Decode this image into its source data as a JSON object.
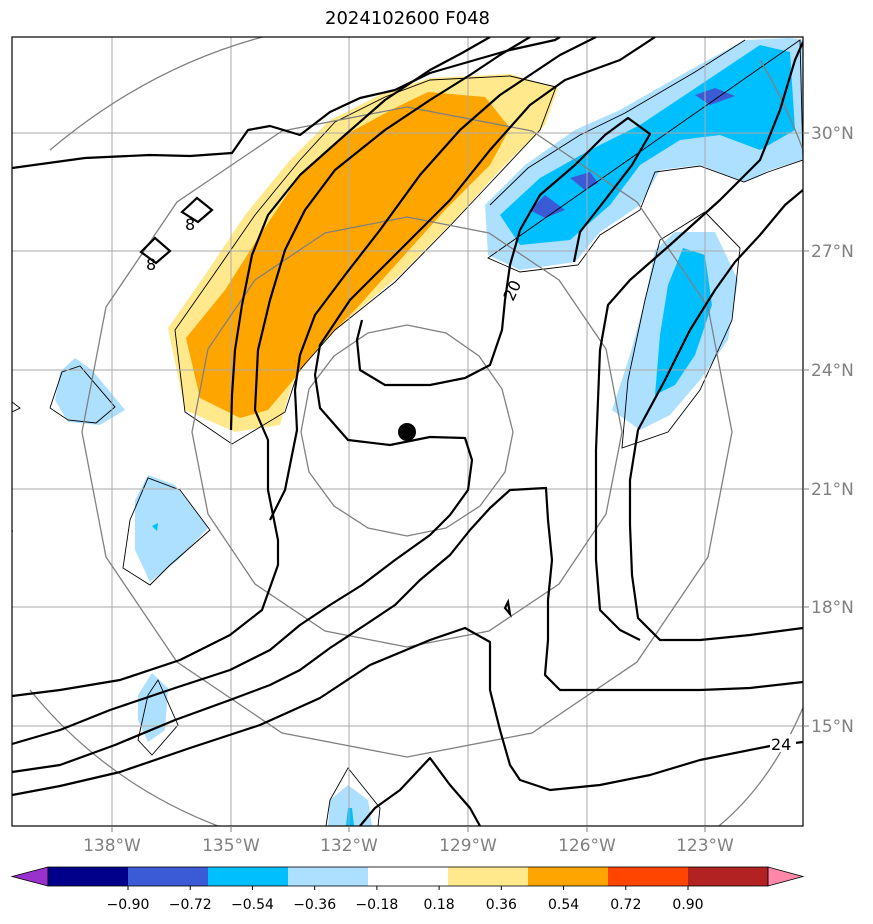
{
  "title": "2024102600 F048",
  "map": {
    "lon_labels": [
      "138°W",
      "135°W",
      "132°W",
      "129°W",
      "126°W",
      "123°W"
    ],
    "lat_labels": [
      "30°N",
      "27°N",
      "24°N",
      "21°N",
      "18°N",
      "15°N"
    ],
    "contour_labels": [
      "20",
      "24",
      "8",
      "8"
    ],
    "center_marker": "storm-center"
  },
  "colorbar": {
    "levels": [
      "−0.90",
      "−0.72",
      "−0.54",
      "−0.36",
      "−0.18",
      "0.18",
      "0.36",
      "0.54",
      "0.72",
      "0.90"
    ],
    "colors": [
      "#9932CC",
      "#00008B",
      "#3B5BD6",
      "#00BFFF",
      "#ADDFFF",
      "#FFFFFF",
      "#FFE98C",
      "#FFA500",
      "#FF4500",
      "#B22222",
      "#FF88AA"
    ]
  }
}
